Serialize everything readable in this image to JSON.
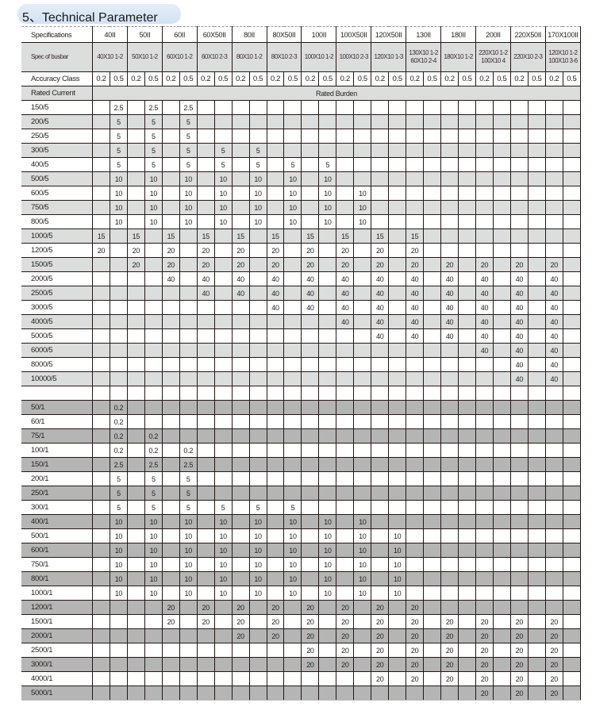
{
  "title": "5、Technical Parameter",
  "labels": {
    "specifications": "Specifications",
    "busbar": "Spec of busbar",
    "accuracy": "Accuracy Class",
    "rated_current": "Rated Current",
    "rated_burden": "Rated Burden"
  },
  "specs": [
    "40II",
    "50II",
    "60II",
    "60X50II",
    "80II",
    "80X50II",
    "100II",
    "100X50II",
    "120X50II",
    "130II",
    "180II",
    "200II",
    "220X50II",
    "170X100II"
  ],
  "busbars": [
    [
      "40X10 1-2"
    ],
    [
      "50X10 1-2"
    ],
    [
      "60X10 1-2"
    ],
    [
      "60X10 2-3"
    ],
    [
      "80X10 1-2"
    ],
    [
      "80X10 2-3"
    ],
    [
      "100X10 1-2"
    ],
    [
      "100X10 2-3"
    ],
    [
      "120X10 1-3"
    ],
    [
      "130X10 1-2",
      "60X10 2-4"
    ],
    [
      "180X10 1-2"
    ],
    [
      "220X10 1-2",
      "100X10 4"
    ],
    [
      "220X10 2-3"
    ],
    [
      "120X10 1-2",
      "100X10 3-6"
    ]
  ],
  "accuracy_classes": [
    "0.2",
    "0.5"
  ],
  "colors": {
    "shade_5a": "#dcdddd",
    "shade_1a": "#b4b5b4",
    "title_bg": "#d8e6f4"
  },
  "rows": [
    {
      "current": "150/5",
      "shade": "none",
      "burden": [
        "",
        "2.5",
        "",
        "2.5",
        "",
        "2.5",
        "",
        "",
        "",
        "",
        "",
        "",
        "",
        "",
        "",
        "",
        "",
        "",
        "",
        "",
        "",
        "",
        "",
        "",
        "",
        "",
        "",
        ""
      ]
    },
    {
      "current": "200/5",
      "shade": "light",
      "burden": [
        "",
        "5",
        "",
        "5",
        "",
        "5",
        "",
        "",
        "",
        "",
        "",
        "",
        "",
        "",
        "",
        "",
        "",
        "",
        "",
        "",
        "",
        "",
        "",
        "",
        "",
        "",
        "",
        ""
      ]
    },
    {
      "current": "250/5",
      "shade": "none",
      "burden": [
        "",
        "5",
        "",
        "5",
        "",
        "5",
        "",
        "",
        "",
        "",
        "",
        "",
        "",
        "",
        "",
        "",
        "",
        "",
        "",
        "",
        "",
        "",
        "",
        "",
        "",
        "",
        "",
        ""
      ]
    },
    {
      "current": "300/5",
      "shade": "light",
      "burden": [
        "",
        "5",
        "",
        "5",
        "",
        "5",
        "",
        "5",
        "",
        "5",
        "",
        "",
        "",
        "",
        "",
        "",
        "",
        "",
        "",
        "",
        "",
        "",
        "",
        "",
        "",
        "",
        "",
        ""
      ]
    },
    {
      "current": "400/5",
      "shade": "none",
      "burden": [
        "",
        "5",
        "",
        "5",
        "",
        "5",
        "",
        "5",
        "",
        "5",
        "",
        "5",
        "",
        "5",
        "",
        "",
        "",
        "",
        "",
        "",
        "",
        "",
        "",
        "",
        "",
        "",
        "",
        ""
      ]
    },
    {
      "current": "500/5",
      "shade": "light",
      "burden": [
        "",
        "10",
        "",
        "10",
        "",
        "10",
        "",
        "10",
        "",
        "10",
        "",
        "10",
        "",
        "10",
        "",
        "",
        "",
        "",
        "",
        "",
        "",
        "",
        "",
        "",
        "",
        "",
        "",
        ""
      ]
    },
    {
      "current": "600/5",
      "shade": "none",
      "burden": [
        "",
        "10",
        "",
        "10",
        "",
        "10",
        "",
        "10",
        "",
        "10",
        "",
        "10",
        "",
        "10",
        "",
        "10",
        "",
        "",
        "",
        "",
        "",
        "",
        "",
        "",
        "",
        "",
        "",
        ""
      ]
    },
    {
      "current": "750/5",
      "shade": "light",
      "burden": [
        "",
        "10",
        "",
        "10",
        "",
        "10",
        "",
        "10",
        "",
        "10",
        "",
        "10",
        "",
        "10",
        "",
        "10",
        "",
        "",
        "",
        "",
        "",
        "",
        "",
        "",
        "",
        "",
        "",
        ""
      ]
    },
    {
      "current": "800/5",
      "shade": "none",
      "burden": [
        "",
        "10",
        "",
        "10",
        "",
        "10",
        "",
        "10",
        "",
        "10",
        "",
        "10",
        "",
        "10",
        "",
        "10",
        "",
        "",
        "",
        "",
        "",
        "",
        "",
        "",
        "",
        "",
        "",
        ""
      ]
    },
    {
      "current": "1000/5",
      "shade": "light",
      "burden": [
        "15",
        "",
        "15",
        "",
        "15",
        "",
        "15",
        "",
        "15",
        "",
        "15",
        "",
        "15",
        "",
        "15",
        "",
        "15",
        "",
        "15",
        "",
        "",
        "",
        "",
        "",
        "",
        "",
        "",
        ""
      ]
    },
    {
      "current": "1200/5",
      "shade": "none",
      "burden": [
        "20",
        "",
        "20",
        "",
        "20",
        "",
        "20",
        "",
        "20",
        "",
        "20",
        "",
        "20",
        "",
        "20",
        "",
        "20",
        "",
        "20",
        "",
        "",
        "",
        "",
        "",
        "",
        "",
        "",
        ""
      ]
    },
    {
      "current": "1500/5",
      "shade": "light",
      "burden": [
        "",
        "",
        "20",
        "",
        "20",
        "",
        "20",
        "",
        "20",
        "",
        "20",
        "",
        "20",
        "",
        "20",
        "",
        "20",
        "",
        "20",
        "",
        "20",
        "",
        "20",
        "",
        "20",
        "",
        "20",
        ""
      ]
    },
    {
      "current": "2000/5",
      "shade": "none",
      "burden": [
        "",
        "",
        "",
        "",
        "40",
        "",
        "40",
        "",
        "40",
        "",
        "40",
        "",
        "40",
        "",
        "40",
        "",
        "40",
        "",
        "40",
        "",
        "40",
        "",
        "40",
        "",
        "40",
        "",
        "40",
        ""
      ]
    },
    {
      "current": "2500/5",
      "shade": "light",
      "burden": [
        "",
        "",
        "",
        "",
        "",
        "",
        "40",
        "",
        "40",
        "",
        "40",
        "",
        "40",
        "",
        "40",
        "",
        "40",
        "",
        "40",
        "",
        "40",
        "",
        "40",
        "",
        "40",
        "",
        "40",
        ""
      ]
    },
    {
      "current": "3000/5",
      "shade": "none",
      "burden": [
        "",
        "",
        "",
        "",
        "",
        "",
        "",
        "",
        "",
        "",
        "40",
        "",
        "40",
        "",
        "40",
        "",
        "40",
        "",
        "40",
        "",
        "40",
        "",
        "40",
        "",
        "40",
        "",
        "40",
        ""
      ]
    },
    {
      "current": "4000/5",
      "shade": "light",
      "burden": [
        "",
        "",
        "",
        "",
        "",
        "",
        "",
        "",
        "",
        "",
        "",
        "",
        "",
        "",
        "40",
        "",
        "40",
        "",
        "40",
        "",
        "40",
        "",
        "40",
        "",
        "40",
        "",
        "40",
        ""
      ]
    },
    {
      "current": "5000/5",
      "shade": "none",
      "burden": [
        "",
        "",
        "",
        "",
        "",
        "",
        "",
        "",
        "",
        "",
        "",
        "",
        "",
        "",
        "",
        "",
        "40",
        "",
        "40",
        "",
        "40",
        "",
        "40",
        "",
        "40",
        "",
        "40",
        ""
      ]
    },
    {
      "current": "6000/5",
      "shade": "light",
      "burden": [
        "",
        "",
        "",
        "",
        "",
        "",
        "",
        "",
        "",
        "",
        "",
        "",
        "",
        "",
        "",
        "",
        "",
        "",
        "",
        "",
        "",
        "",
        "40",
        "",
        "40",
        "",
        "40",
        ""
      ]
    },
    {
      "current": "8000/5",
      "shade": "none",
      "burden": [
        "",
        "",
        "",
        "",
        "",
        "",
        "",
        "",
        "",
        "",
        "",
        "",
        "",
        "",
        "",
        "",
        "",
        "",
        "",
        "",
        "",
        "",
        "",
        "",
        "40",
        "",
        "40",
        ""
      ]
    },
    {
      "current": "10000/5",
      "shade": "light",
      "burden": [
        "",
        "",
        "",
        "",
        "",
        "",
        "",
        "",
        "",
        "",
        "",
        "",
        "",
        "",
        "",
        "",
        "",
        "",
        "",
        "",
        "",
        "",
        "",
        "",
        "40",
        "",
        "40",
        ""
      ]
    },
    {
      "current": "",
      "shade": "none",
      "burden": [
        "",
        "",
        "",
        "",
        "",
        "",
        "",
        "",
        "",
        "",
        "",
        "",
        "",
        "",
        "",
        "",
        "",
        "",
        "",
        "",
        "",
        "",
        "",
        "",
        "",
        "",
        "",
        ""
      ]
    },
    {
      "current": "50/1",
      "shade": "dark",
      "burden": [
        "",
        "0.2",
        "",
        "",
        "",
        "",
        "",
        "",
        "",
        "",
        "",
        "",
        "",
        "",
        "",
        "",
        "",
        "",
        "",
        "",
        "",
        "",
        "",
        "",
        "",
        "",
        "",
        ""
      ]
    },
    {
      "current": "60/1",
      "shade": "none",
      "burden": [
        "",
        "0.2",
        "",
        "",
        "",
        "",
        "",
        "",
        "",
        "",
        "",
        "",
        "",
        "",
        "",
        "",
        "",
        "",
        "",
        "",
        "",
        "",
        "",
        "",
        "",
        "",
        "",
        ""
      ]
    },
    {
      "current": "75/1",
      "shade": "dark",
      "burden": [
        "",
        "0.2",
        "",
        "0.2",
        "",
        "",
        "",
        "",
        "",
        "",
        "",
        "",
        "",
        "",
        "",
        "",
        "",
        "",
        "",
        "",
        "",
        "",
        "",
        "",
        "",
        "",
        "",
        ""
      ]
    },
    {
      "current": "100/1",
      "shade": "none",
      "burden": [
        "",
        "0.2",
        "",
        "0.2",
        "",
        "0.2",
        "",
        "",
        "",
        "",
        "",
        "",
        "",
        "",
        "",
        "",
        "",
        "",
        "",
        "",
        "",
        "",
        "",
        "",
        "",
        "",
        "",
        ""
      ]
    },
    {
      "current": "150/1",
      "shade": "dark",
      "burden": [
        "",
        "2.5",
        "",
        "2.5",
        "",
        "2.5",
        "",
        "",
        "",
        "",
        "",
        "",
        "",
        "",
        "",
        "",
        "",
        "",
        "",
        "",
        "",
        "",
        "",
        "",
        "",
        "",
        "",
        ""
      ]
    },
    {
      "current": "200/1",
      "shade": "none",
      "burden": [
        "",
        "5",
        "",
        "5",
        "",
        "5",
        "",
        "",
        "",
        "",
        "",
        "",
        "",
        "",
        "",
        "",
        "",
        "",
        "",
        "",
        "",
        "",
        "",
        "",
        "",
        "",
        "",
        ""
      ]
    },
    {
      "current": "250/1",
      "shade": "dark",
      "burden": [
        "",
        "5",
        "",
        "5",
        "",
        "5",
        "",
        "",
        "",
        "",
        "",
        "",
        "",
        "",
        "",
        "",
        "",
        "",
        "",
        "",
        "",
        "",
        "",
        "",
        "",
        "",
        "",
        ""
      ]
    },
    {
      "current": "300/1",
      "shade": "none",
      "burden": [
        "",
        "5",
        "",
        "5",
        "",
        "5",
        "",
        "5",
        "",
        "5",
        "",
        "5",
        "",
        "",
        "",
        "",
        "",
        "",
        "",
        "",
        "",
        "",
        "",
        "",
        "",
        "",
        "",
        ""
      ]
    },
    {
      "current": "400/1",
      "shade": "dark",
      "burden": [
        "",
        "10",
        "",
        "10",
        "",
        "10",
        "",
        "10",
        "",
        "10",
        "",
        "10",
        "",
        "10",
        "",
        "10",
        "",
        "",
        "",
        "",
        "",
        "",
        "",
        "",
        "",
        "",
        "",
        ""
      ]
    },
    {
      "current": "500/1",
      "shade": "none",
      "burden": [
        "",
        "10",
        "",
        "10",
        "",
        "10",
        "",
        "10",
        "",
        "10",
        "",
        "10",
        "",
        "10",
        "",
        "10",
        "",
        "10",
        "",
        "",
        "",
        "",
        "",
        "",
        "",
        "",
        "",
        ""
      ]
    },
    {
      "current": "600/1",
      "shade": "dark",
      "burden": [
        "",
        "10",
        "",
        "10",
        "",
        "10",
        "",
        "10",
        "",
        "10",
        "",
        "10",
        "",
        "10",
        "",
        "10",
        "",
        "10",
        "",
        "",
        "",
        "",
        "",
        "",
        "",
        "",
        "",
        ""
      ]
    },
    {
      "current": "750/1",
      "shade": "none",
      "burden": [
        "",
        "10",
        "",
        "10",
        "",
        "10",
        "",
        "10",
        "",
        "10",
        "",
        "10",
        "",
        "10",
        "",
        "10",
        "",
        "10",
        "",
        "",
        "",
        "",
        "",
        "",
        "",
        "",
        "",
        ""
      ]
    },
    {
      "current": "800/1",
      "shade": "dark",
      "burden": [
        "",
        "10",
        "",
        "10",
        "",
        "10",
        "",
        "10",
        "",
        "10",
        "",
        "10",
        "",
        "10",
        "",
        "10",
        "",
        "10",
        "",
        "",
        "",
        "",
        "",
        "",
        "",
        "",
        "",
        ""
      ]
    },
    {
      "current": "1000/1",
      "shade": "none",
      "burden": [
        "",
        "10",
        "",
        "10",
        "",
        "10",
        "",
        "10",
        "",
        "10",
        "",
        "10",
        "",
        "10",
        "",
        "10",
        "",
        "10",
        "",
        "",
        "",
        "",
        "",
        "",
        "",
        "",
        "",
        ""
      ]
    },
    {
      "current": "1200/1",
      "shade": "dark",
      "burden": [
        "",
        "",
        "",
        "",
        "20",
        "",
        "20",
        "",
        "20",
        "",
        "20",
        "",
        "20",
        "",
        "20",
        "",
        "20",
        "",
        "20",
        "",
        "",
        "",
        "",
        "",
        "",
        "",
        "",
        ""
      ]
    },
    {
      "current": "1500/1",
      "shade": "none",
      "burden": [
        "",
        "",
        "",
        "",
        "20",
        "",
        "20",
        "",
        "20",
        "",
        "20",
        "",
        "20",
        "",
        "20",
        "",
        "20",
        "",
        "20",
        "",
        "20",
        "",
        "20",
        "",
        "20",
        "",
        "20",
        ""
      ]
    },
    {
      "current": "2000/1",
      "shade": "dark",
      "burden": [
        "",
        "",
        "",
        "",
        "",
        "",
        "",
        "",
        "20",
        "",
        "20",
        "",
        "20",
        "",
        "20",
        "",
        "20",
        "",
        "20",
        "",
        "20",
        "",
        "20",
        "",
        "20",
        "",
        "20",
        ""
      ]
    },
    {
      "current": "2500/1",
      "shade": "none",
      "burden": [
        "",
        "",
        "",
        "",
        "",
        "",
        "",
        "",
        "",
        "",
        "",
        "",
        "20",
        "",
        "20",
        "",
        "20",
        "",
        "20",
        "",
        "20",
        "",
        "20",
        "",
        "20",
        "",
        "20",
        ""
      ]
    },
    {
      "current": "3000/1",
      "shade": "dark",
      "burden": [
        "",
        "",
        "",
        "",
        "",
        "",
        "",
        "",
        "",
        "",
        "",
        "",
        "20",
        "",
        "20",
        "",
        "20",
        "",
        "20",
        "",
        "20",
        "",
        "20",
        "",
        "20",
        "",
        "20",
        ""
      ]
    },
    {
      "current": "4000/1",
      "shade": "none",
      "burden": [
        "",
        "",
        "",
        "",
        "",
        "",
        "",
        "",
        "",
        "",
        "",
        "",
        "",
        "",
        "",
        "",
        "20",
        "",
        "20",
        "",
        "20",
        "",
        "20",
        "",
        "20",
        "",
        "20",
        ""
      ]
    },
    {
      "current": "5000/1",
      "shade": "dark",
      "burden": [
        "",
        "",
        "",
        "",
        "",
        "",
        "",
        "",
        "",
        "",
        "",
        "",
        "",
        "",
        "",
        "",
        "",
        "",
        "",
        "",
        "",
        "",
        "20",
        "",
        "20",
        "",
        "20",
        ""
      ]
    }
  ]
}
